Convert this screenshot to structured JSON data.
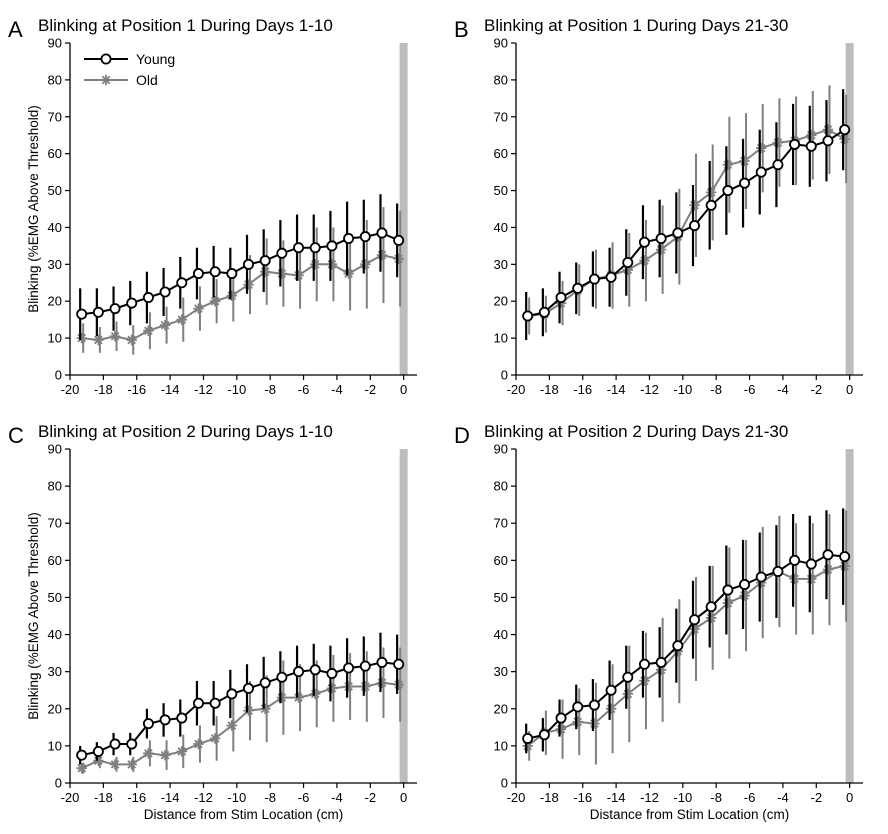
{
  "figure": {
    "xlabel": "Distance from Stim Location (cm)",
    "ylabel": "Blinking (%EMG Above Threshold)",
    "legend": [
      {
        "name": "Young",
        "color": "#000000",
        "marker": "circle"
      },
      {
        "name": "Old",
        "color": "#7f7f7f",
        "marker": "star"
      }
    ],
    "stim_marker_color": "#bdbdbd"
  },
  "chart_data": [
    {
      "type": "line",
      "letter": "A",
      "title": "Blinking at Position 1 During Days 1-10",
      "xlim": [
        -20,
        0.8
      ],
      "ylim": [
        0,
        90
      ],
      "xticks": [
        -20,
        -18,
        -16,
        -14,
        -12,
        -10,
        -8,
        -6,
        -4,
        -2,
        0
      ],
      "yticks": [
        0,
        10,
        20,
        30,
        40,
        50,
        60,
        70,
        80,
        90
      ],
      "stim_x": 0,
      "x": [
        -19.3,
        -18.3,
        -17.3,
        -16.3,
        -15.3,
        -14.3,
        -13.3,
        -12.3,
        -11.3,
        -10.3,
        -9.3,
        -8.3,
        -7.3,
        -6.3,
        -5.3,
        -4.3,
        -3.3,
        -2.3,
        -1.3,
        -0.3
      ],
      "series": [
        {
          "name": "Young",
          "values": [
            16.5,
            17,
            18,
            19.5,
            21,
            22.5,
            25,
            27.5,
            28,
            27.5,
            30,
            31,
            33,
            34.5,
            34.5,
            35,
            37,
            37.5,
            38.5,
            36.5
          ],
          "errors": [
            7,
            6.5,
            6,
            6,
            7,
            6.5,
            7,
            7,
            7,
            7,
            8,
            8.5,
            9,
            9,
            9,
            9.5,
            10,
            10,
            10.5,
            10
          ]
        },
        {
          "name": "Old",
          "values": [
            10,
            9.5,
            10.5,
            9.5,
            12,
            13.5,
            15,
            18,
            20,
            21.5,
            24.5,
            28,
            27.5,
            27,
            30,
            30,
            27.5,
            30,
            32.5,
            31.5
          ],
          "errors": [
            4,
            3.5,
            4,
            4,
            5,
            5,
            6,
            6,
            6,
            7,
            8,
            9,
            9,
            9,
            10,
            10,
            10,
            12,
            13,
            13
          ]
        }
      ]
    },
    {
      "type": "line",
      "letter": "B",
      "title": "Blinking at Position 1 During Days 21-30",
      "xlim": [
        -20,
        0.8
      ],
      "ylim": [
        0,
        90
      ],
      "xticks": [
        -20,
        -18,
        -16,
        -14,
        -12,
        -10,
        -8,
        -6,
        -4,
        -2,
        0
      ],
      "yticks": [
        0,
        10,
        20,
        30,
        40,
        50,
        60,
        70,
        80,
        90
      ],
      "stim_x": 0,
      "x": [
        -19.3,
        -18.3,
        -17.3,
        -16.3,
        -15.3,
        -14.3,
        -13.3,
        -12.3,
        -11.3,
        -10.3,
        -9.3,
        -8.3,
        -7.3,
        -6.3,
        -5.3,
        -4.3,
        -3.3,
        -2.3,
        -1.3,
        -0.3
      ],
      "series": [
        {
          "name": "Young",
          "values": [
            16,
            17,
            21,
            23.5,
            26,
            26.5,
            30.5,
            36,
            37,
            38.5,
            40.5,
            46,
            50,
            52,
            55,
            57,
            62.5,
            62,
            63.5,
            66.5
          ],
          "errors": [
            6.5,
            6.5,
            7,
            7,
            7.5,
            8,
            9,
            10,
            10.5,
            11,
            11,
            12,
            12,
            12,
            11.5,
            11.5,
            11,
            11,
            11,
            11
          ]
        },
        {
          "name": "Old",
          "values": [
            16,
            16.5,
            19.5,
            23,
            26,
            27,
            28.5,
            31,
            34,
            37.5,
            46,
            49.5,
            57,
            58,
            61.5,
            63,
            63.5,
            65,
            66.5,
            64
          ],
          "errors": [
            5,
            5,
            6,
            7,
            8,
            9,
            10,
            11,
            12,
            13,
            14,
            13,
            13,
            13,
            12,
            12,
            12,
            12,
            12,
            12
          ]
        }
      ]
    },
    {
      "type": "line",
      "letter": "C",
      "title": "Blinking at Position 2 During Days 1-10",
      "xlim": [
        -20,
        0.8
      ],
      "ylim": [
        0,
        90
      ],
      "xticks": [
        -20,
        -18,
        -16,
        -14,
        -12,
        -10,
        -8,
        -6,
        -4,
        -2,
        0
      ],
      "yticks": [
        0,
        10,
        20,
        30,
        40,
        50,
        60,
        70,
        80,
        90
      ],
      "stim_x": 0,
      "x": [
        -19.3,
        -18.3,
        -17.3,
        -16.3,
        -15.3,
        -14.3,
        -13.3,
        -12.3,
        -11.3,
        -10.3,
        -9.3,
        -8.3,
        -7.3,
        -6.3,
        -5.3,
        -4.3,
        -3.3,
        -2.3,
        -1.3,
        -0.3
      ],
      "series": [
        {
          "name": "Young",
          "values": [
            7.5,
            8.5,
            10.5,
            10.5,
            16,
            17,
            17.5,
            21.5,
            21.5,
            24,
            25.5,
            27,
            28.5,
            30,
            30.5,
            29.5,
            31,
            31.5,
            32.5,
            32
          ],
          "errors": [
            2.5,
            2.5,
            3,
            3,
            4,
            4.5,
            5,
            6,
            6,
            6.5,
            6.5,
            7,
            7,
            7,
            7,
            7.5,
            8,
            8,
            8,
            8
          ]
        },
        {
          "name": "Old",
          "values": [
            4,
            6,
            5,
            5,
            8,
            7.5,
            8.5,
            10.5,
            12,
            15.5,
            19.5,
            20,
            23,
            23,
            24,
            25.5,
            26,
            26,
            27,
            26.5
          ],
          "errors": [
            1.5,
            2,
            2,
            2,
            3.5,
            4,
            4.5,
            5,
            6,
            7,
            8,
            9,
            10,
            9,
            9,
            9,
            9,
            9.5,
            9.5,
            10
          ]
        }
      ]
    },
    {
      "type": "line",
      "letter": "D",
      "title": "Blinking at Position 2 During Days 21-30",
      "xlim": [
        -20,
        0.8
      ],
      "ylim": [
        0,
        90
      ],
      "xticks": [
        -20,
        -18,
        -16,
        -14,
        -12,
        -10,
        -8,
        -6,
        -4,
        -2,
        0
      ],
      "yticks": [
        0,
        10,
        20,
        30,
        40,
        50,
        60,
        70,
        80,
        90
      ],
      "stim_x": 0,
      "x": [
        -19.3,
        -18.3,
        -17.3,
        -16.3,
        -15.3,
        -14.3,
        -13.3,
        -12.3,
        -11.3,
        -10.3,
        -9.3,
        -8.3,
        -7.3,
        -6.3,
        -5.3,
        -4.3,
        -3.3,
        -2.3,
        -1.3,
        -0.3
      ],
      "series": [
        {
          "name": "Young",
          "values": [
            12,
            13,
            17.5,
            20.5,
            21,
            25,
            28.5,
            32,
            32.5,
            37,
            44,
            47.5,
            52,
            53.5,
            55.5,
            57,
            60,
            59,
            61.5,
            61
          ],
          "errors": [
            4,
            4.5,
            5,
            6,
            7,
            8,
            8.5,
            9,
            9.5,
            10,
            10.5,
            11,
            12,
            12,
            12,
            12.5,
            12.5,
            13,
            12,
            13
          ]
        },
        {
          "name": "Old",
          "values": [
            10,
            13.5,
            14.5,
            16.5,
            16,
            20,
            24,
            27.5,
            30.5,
            35.5,
            41.5,
            44.5,
            48.5,
            50.5,
            54,
            57,
            55,
            55,
            57.5,
            58.5
          ],
          "errors": [
            4,
            6,
            8,
            9,
            11,
            12,
            13,
            13,
            14,
            14,
            14,
            14,
            15,
            15,
            15,
            15,
            15,
            15,
            15,
            15
          ]
        }
      ]
    }
  ]
}
